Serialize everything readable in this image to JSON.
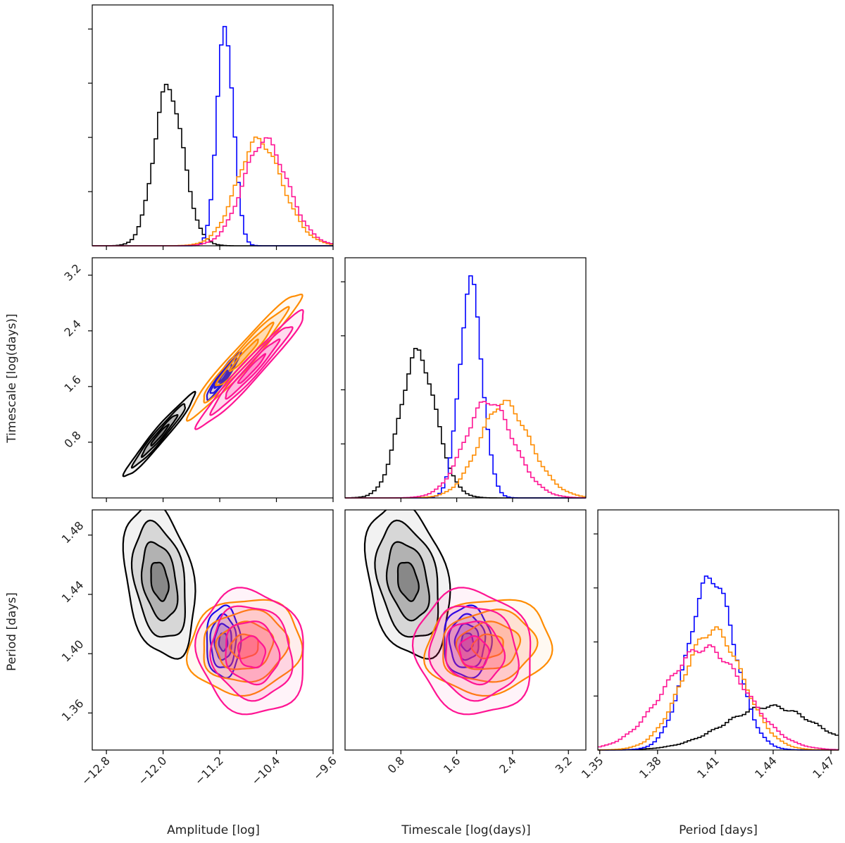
{
  "chart_data": {
    "type": "corner",
    "title": "",
    "parameters": [
      {
        "key": "amp",
        "label": "Amplitude [log]",
        "range": [
          -13.0,
          -9.6
        ],
        "ticks": [
          -12.8,
          -12.0,
          -11.2,
          -10.4,
          -9.6
        ],
        "tick_labels": [
          "−12.8",
          "−12.0",
          "−11.2",
          "−10.4",
          "−9.6"
        ]
      },
      {
        "key": "tau",
        "label": "Timescale [log(days)]",
        "range": [
          0.0,
          3.45
        ],
        "ticks": [
          0.8,
          1.6,
          2.4,
          3.2
        ],
        "tick_labels": [
          "0.8",
          "1.6",
          "2.4",
          "3.2"
        ]
      },
      {
        "key": "per",
        "label": "Period [days]",
        "range": [
          1.349,
          1.474
        ],
        "ticks": [
          1.35,
          1.38,
          1.41,
          1.44,
          1.47
        ],
        "tick_labels": [
          "1.35",
          "1.38",
          "1.41",
          "1.44",
          "1.47"
        ],
        "y_ticks": [
          1.36,
          1.4,
          1.44,
          1.48
        ],
        "y_tick_labels": [
          "1.36",
          "1.40",
          "1.44",
          "1.48"
        ],
        "y_range": [
          1.335,
          1.497
        ]
      }
    ],
    "series": [
      {
        "name": "black",
        "color": "#000000",
        "mean": {
          "amp": -12.05,
          "tau": 0.9,
          "per": 1.449
        },
        "sd": {
          "amp": 0.25,
          "tau": 0.3,
          "per": 0.026
        },
        "skew": {
          "amp": 0.9,
          "tau": 0.8,
          "per": -0.6
        },
        "corr": {
          "amp_tau": 0.97,
          "amp_per": -0.3,
          "tau_per": -0.3
        },
        "hist_peak": {
          "amp": 225,
          "tau": 205,
          "per": 62
        }
      },
      {
        "name": "blue",
        "color": "#0000ff",
        "mean": {
          "amp": -11.15,
          "tau": 1.75,
          "per": 1.408
        },
        "sd": {
          "amp": 0.12,
          "tau": 0.17,
          "per": 0.012
        },
        "skew": {
          "amp": 0.3,
          "tau": 0.4,
          "per": 0.0
        },
        "corr": {
          "amp_tau": 0.95,
          "amp_per": 0.0,
          "tau_per": 0.0
        },
        "hist_peak": {
          "amp": 310,
          "tau": 305,
          "per": 245
        }
      },
      {
        "name": "orange",
        "color": "#ff8c00",
        "mean": {
          "amp": -10.85,
          "tau": 2.05,
          "per": 1.405
        },
        "sd": {
          "amp": 0.4,
          "tau": 0.45,
          "per": 0.016
        },
        "skew": {
          "amp": 1.0,
          "tau": 1.0,
          "per": 0.3
        },
        "corr": {
          "amp_tau": 0.97,
          "amp_per": 0.1,
          "tau_per": 0.1
        },
        "hist_peak": {
          "amp": 150,
          "tau": 135,
          "per": 170
        }
      },
      {
        "name": "magenta",
        "color": "#ff1493",
        "mean": {
          "amp": -10.75,
          "tau": 1.85,
          "per": 1.401
        },
        "sd": {
          "amp": 0.38,
          "tau": 0.42,
          "per": 0.021
        },
        "skew": {
          "amp": 0.9,
          "tau": 0.9,
          "per": 0.2
        },
        "corr": {
          "amp_tau": 0.97,
          "amp_per": -0.1,
          "tau_per": -0.1
        },
        "hist_peak": {
          "amp": 150,
          "tau": 138,
          "per": 145
        }
      }
    ],
    "contour_levels_sigma": [
      0.5,
      1.0,
      1.5,
      2.0
    ],
    "annotations": [],
    "legend": "none",
    "grid": false
  }
}
